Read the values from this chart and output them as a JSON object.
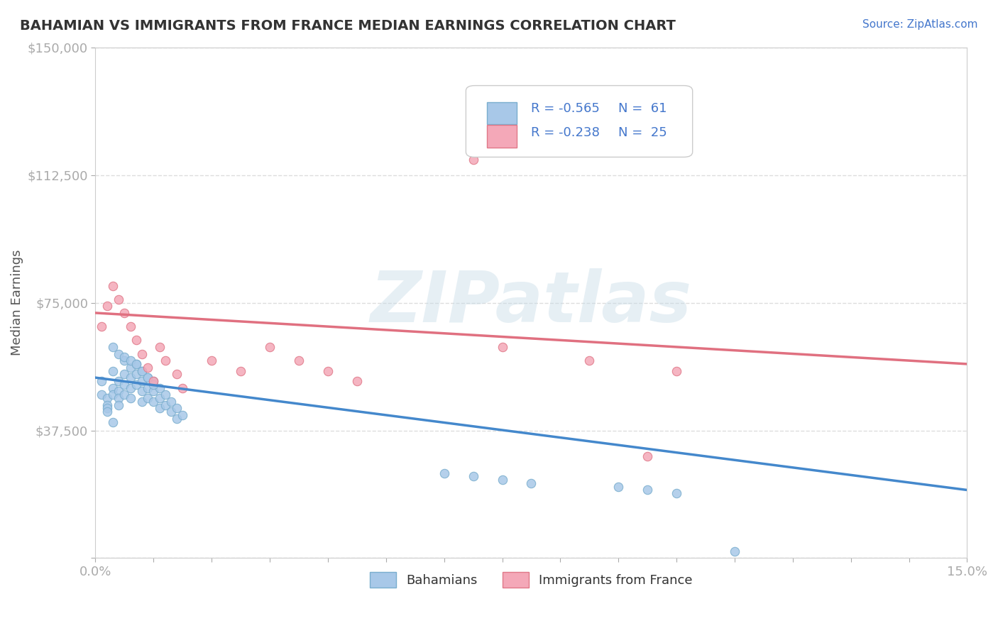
{
  "title": "BAHAMIAN VS IMMIGRANTS FROM FRANCE MEDIAN EARNINGS CORRELATION CHART",
  "source_text": "Source: ZipAtlas.com",
  "xlabel": "",
  "ylabel": "Median Earnings",
  "xlim": [
    0.0,
    0.15
  ],
  "ylim": [
    0,
    150000
  ],
  "yticks": [
    0,
    37500,
    75000,
    112500,
    150000
  ],
  "ytick_labels": [
    "",
    "$37,500",
    "$75,000",
    "$112,500",
    "$150,000"
  ],
  "xtick_labels": [
    "0.0%",
    "",
    "",
    "",
    "",
    "",
    "",
    "",
    "",
    "",
    "",
    "",
    "",
    "",
    "",
    "15.0%"
  ],
  "background_color": "#ffffff",
  "plot_bg_color": "#ffffff",
  "grid_color": "#dddddd",
  "watermark_text": "ZIPatlas",
  "watermark_color_zip": "#c8d8e8",
  "watermark_color_atlas": "#d0d8c0",
  "legend_r1": "R = -0.565",
  "legend_n1": "N =  61",
  "legend_r2": "R = -0.238",
  "legend_n2": "N =  25",
  "series1_color": "#a8c8e8",
  "series1_edge": "#7aaece",
  "series1_line": "#4488cc",
  "series2_color": "#f4a8b8",
  "series2_edge": "#e07888",
  "series2_line": "#e07080",
  "legend_text_color": "#4477cc",
  "title_color": "#333333",
  "ylabel_color": "#555555",
  "axis_label_color": "#4477cc",
  "series1_x": [
    0.001,
    0.001,
    0.002,
    0.002,
    0.002,
    0.003,
    0.003,
    0.003,
    0.004,
    0.004,
    0.004,
    0.004,
    0.005,
    0.005,
    0.005,
    0.005,
    0.006,
    0.006,
    0.006,
    0.006,
    0.007,
    0.007,
    0.007,
    0.008,
    0.008,
    0.008,
    0.008,
    0.009,
    0.009,
    0.009,
    0.01,
    0.01,
    0.01,
    0.011,
    0.011,
    0.011,
    0.012,
    0.012,
    0.013,
    0.013,
    0.014,
    0.014,
    0.015,
    0.003,
    0.004,
    0.005,
    0.006,
    0.007,
    0.008,
    0.009,
    0.01,
    0.002,
    0.003,
    0.06,
    0.065,
    0.07,
    0.075,
    0.09,
    0.095,
    0.1,
    0.11
  ],
  "series1_y": [
    52000,
    48000,
    47000,
    45000,
    44000,
    55000,
    50000,
    48000,
    52000,
    49000,
    47000,
    45000,
    58000,
    54000,
    51000,
    48000,
    56000,
    53000,
    50000,
    47000,
    57000,
    54000,
    51000,
    55000,
    52000,
    49000,
    46000,
    53000,
    50000,
    47000,
    52000,
    49000,
    46000,
    50000,
    47000,
    44000,
    48000,
    45000,
    46000,
    43000,
    44000,
    41000,
    42000,
    62000,
    60000,
    59000,
    58000,
    57000,
    55000,
    53000,
    51000,
    43000,
    40000,
    25000,
    24000,
    23000,
    22000,
    21000,
    20000,
    19000,
    2000
  ],
  "series2_x": [
    0.001,
    0.002,
    0.003,
    0.004,
    0.005,
    0.006,
    0.007,
    0.008,
    0.009,
    0.01,
    0.011,
    0.012,
    0.014,
    0.015,
    0.02,
    0.025,
    0.03,
    0.035,
    0.04,
    0.045,
    0.065,
    0.07,
    0.085,
    0.095,
    0.1
  ],
  "series2_y": [
    68000,
    74000,
    80000,
    76000,
    72000,
    68000,
    64000,
    60000,
    56000,
    52000,
    62000,
    58000,
    54000,
    50000,
    58000,
    55000,
    62000,
    58000,
    55000,
    52000,
    117000,
    62000,
    58000,
    30000,
    55000
  ],
  "trend1_x": [
    0.0,
    0.15
  ],
  "trend1_y": [
    53000,
    20000
  ],
  "trend2_x": [
    0.0,
    0.15
  ],
  "trend2_y": [
    72000,
    57000
  ]
}
